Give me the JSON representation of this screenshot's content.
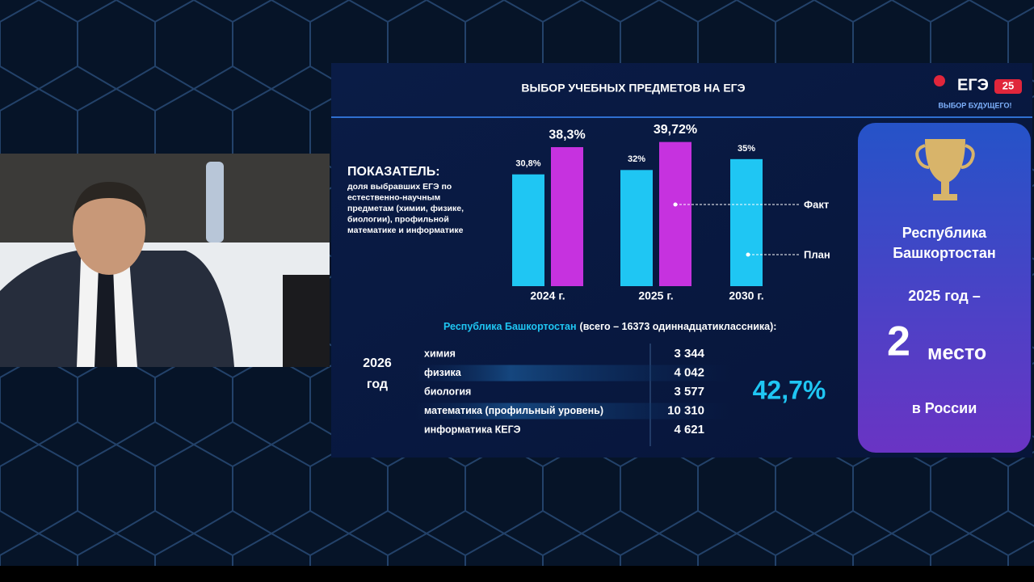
{
  "chart_data": {
    "type": "bar",
    "categories": [
      "2024 г.",
      "2025 г.",
      "2030 г."
    ],
    "series": [
      {
        "name": "План",
        "color": "#1fc6f3",
        "values": [
          30.8,
          32,
          35
        ],
        "value_labels": [
          "30,8%",
          "32%",
          "35%"
        ]
      },
      {
        "name": "Факт",
        "color": "#c632df",
        "values": [
          38.3,
          39.72,
          null
        ],
        "value_labels": [
          "38,3%",
          "39,72%",
          null
        ]
      }
    ]
  },
  "slide": {
    "title": "ВЫБОР УЧЕБНЫХ ПРЕДМЕТОВ НА ЕГЭ",
    "logo": {
      "name": "ЕГЭ",
      "badge": "25",
      "slogan": "ВЫБОР БУДУЩЕГО!"
    },
    "indicator": {
      "title": "ПОКАЗАТЕЛЬ:",
      "lines": [
        "доля выбравших ЕГЭ по",
        "естественно-научным",
        "предметам (химии, физике,",
        "биологии), профильной",
        "математике и информатике"
      ]
    },
    "region_line": {
      "region": "Республика Башкортостан",
      "total": "(всего – 16373 одиннадцатиклассника):"
    },
    "table": {
      "year": [
        "2026",
        "год"
      ],
      "rows": [
        [
          "химия",
          "3 344"
        ],
        [
          "физика",
          "4 042"
        ],
        [
          "биология",
          "3 577"
        ],
        [
          "математика (профильный уровень)",
          "10 310"
        ],
        [
          "информатика КЕГЭ",
          "4 621"
        ]
      ],
      "share": "42,7%"
    },
    "panel": {
      "region": [
        "Республика",
        "Башкортостан"
      ],
      "year": "2025 год –",
      "place": "2",
      "place_word": "место",
      "country": "в России"
    }
  }
}
